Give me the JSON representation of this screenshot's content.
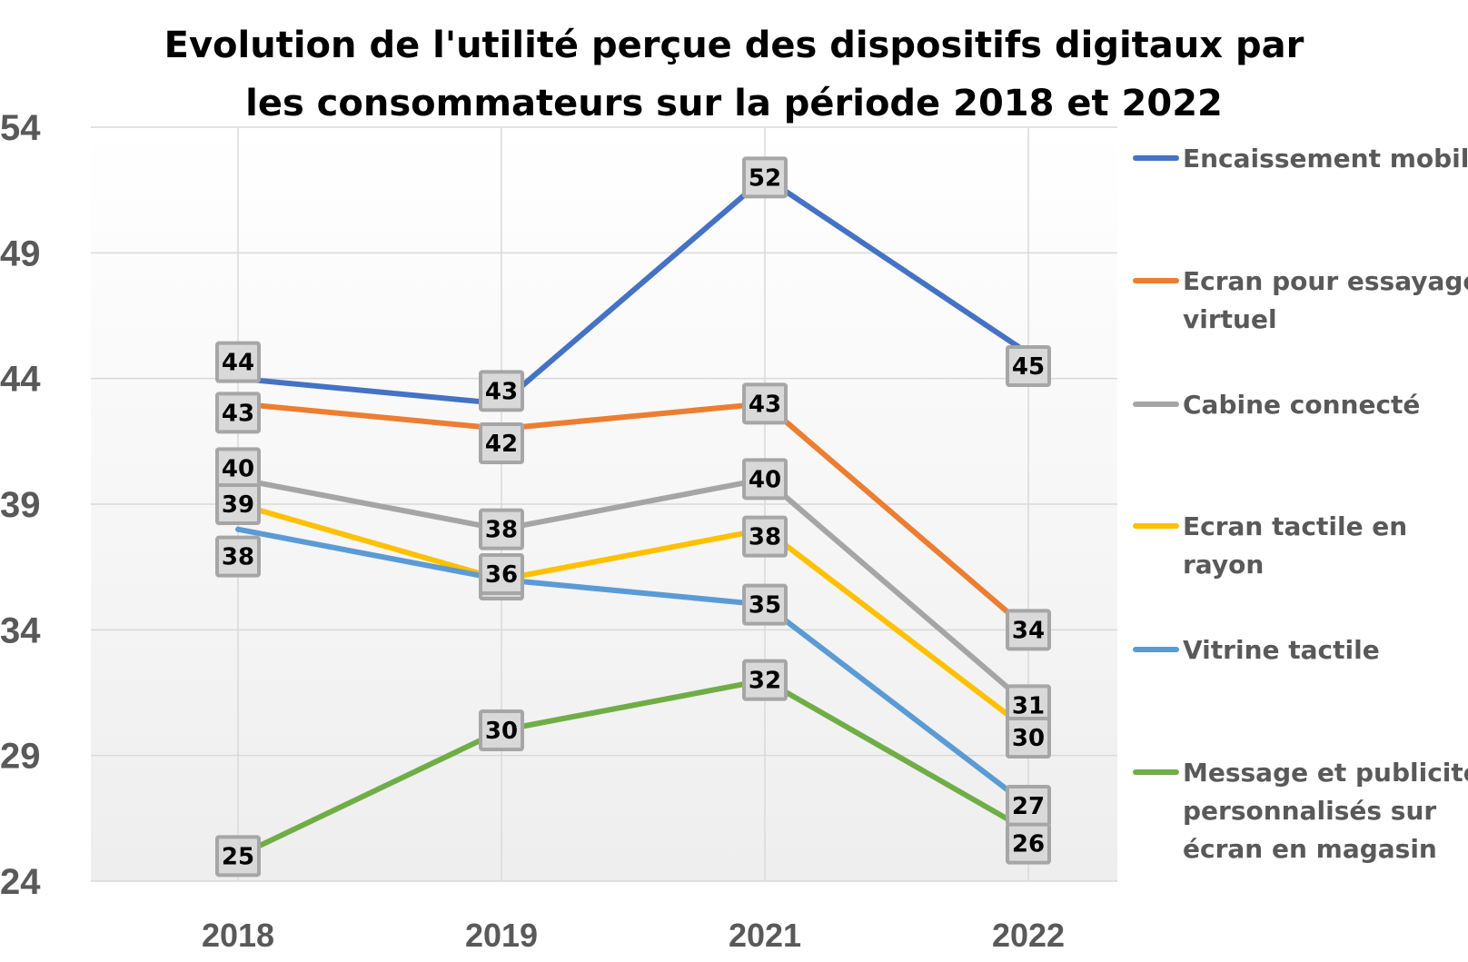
{
  "chart_data": {
    "type": "line",
    "title_lines": [
      "Evolution de l'utilité perçue des dispositifs digitaux par",
      "les consommateurs sur la période 2018 et  2022"
    ],
    "categories": [
      "2018",
      "2019",
      "2021",
      "2022"
    ],
    "ylim": [
      24,
      54
    ],
    "yticks": [
      "54",
      "49",
      "44",
      "39",
      "34",
      "29",
      "24"
    ],
    "grid": true,
    "legend_position": "right",
    "series": [
      {
        "name": "Encaissement mobile",
        "legend_lines": [
          "Encaissement mobile"
        ],
        "color": "#4472C4",
        "values": [
          44,
          43,
          52,
          45
        ],
        "labels": [
          "44",
          "43",
          "52",
          "45"
        ]
      },
      {
        "name": "Ecran pour essayage virtuel",
        "legend_lines": [
          "Ecran pour essayage",
          "virtuel"
        ],
        "color": "#ED7D31",
        "values": [
          43,
          42,
          43,
          34
        ],
        "labels": [
          "43",
          "42",
          "43",
          "34"
        ]
      },
      {
        "name": "Cabine connecté",
        "legend_lines": [
          "Cabine connecté"
        ],
        "color": "#A5A5A5",
        "values": [
          40,
          38,
          40,
          31
        ],
        "labels": [
          "40",
          "38",
          "40",
          "31"
        ]
      },
      {
        "name": "Ecran tactile en rayon",
        "legend_lines": [
          "Ecran tactile en",
          "rayon"
        ],
        "color": "#FFC000",
        "values": [
          39,
          36,
          38,
          30
        ],
        "labels": [
          "39",
          "36",
          "38",
          "30"
        ]
      },
      {
        "name": "Vitrine tactile",
        "legend_lines": [
          "Vitrine tactile"
        ],
        "color": "#5B9BD5",
        "values": [
          38,
          36,
          35,
          27
        ],
        "labels": [
          "38",
          "36",
          "35",
          "27"
        ]
      },
      {
        "name": "Message et publicités personnalisés sur écran en magasin",
        "legend_lines": [
          "Message et publicités",
          "personnalisés sur",
          "écran en magasin"
        ],
        "color": "#70AD47",
        "values": [
          25,
          30,
          32,
          26
        ],
        "labels": [
          "25",
          "30",
          "32",
          "26"
        ]
      }
    ]
  }
}
